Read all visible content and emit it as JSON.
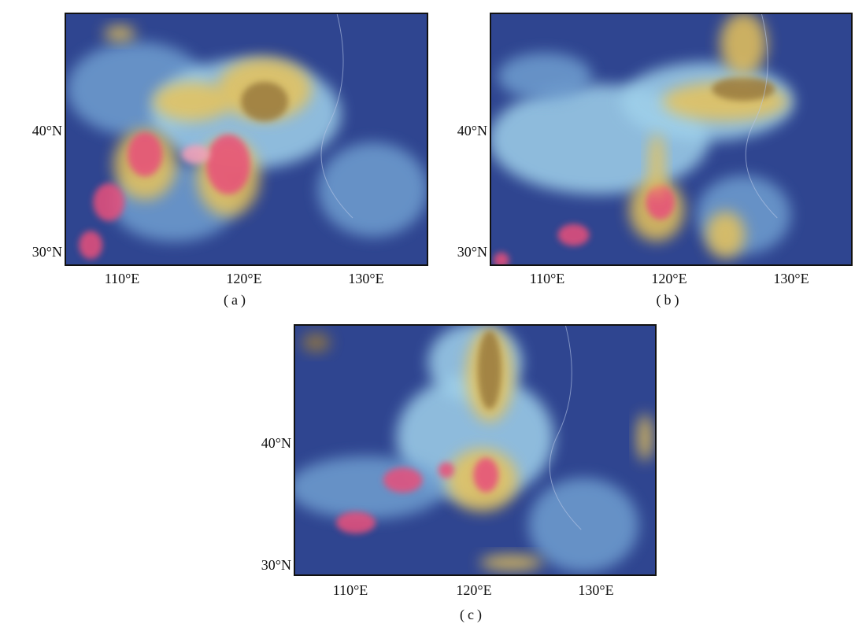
{
  "panels": [
    {
      "caption": "(a)",
      "lat_labels": [
        "40°N",
        "30°N"
      ],
      "lon_labels": [
        "110°E",
        "120°E",
        "130°E"
      ]
    },
    {
      "caption": "(b)",
      "lat_labels": [
        "40°N",
        "30°N"
      ],
      "lon_labels": [
        "110°E",
        "120°E",
        "130°E"
      ]
    },
    {
      "caption": "(c)",
      "lat_labels": [
        "40°N",
        "30°N"
      ],
      "lon_labels": [
        "110°E",
        "120°E",
        "130°E"
      ]
    }
  ]
}
